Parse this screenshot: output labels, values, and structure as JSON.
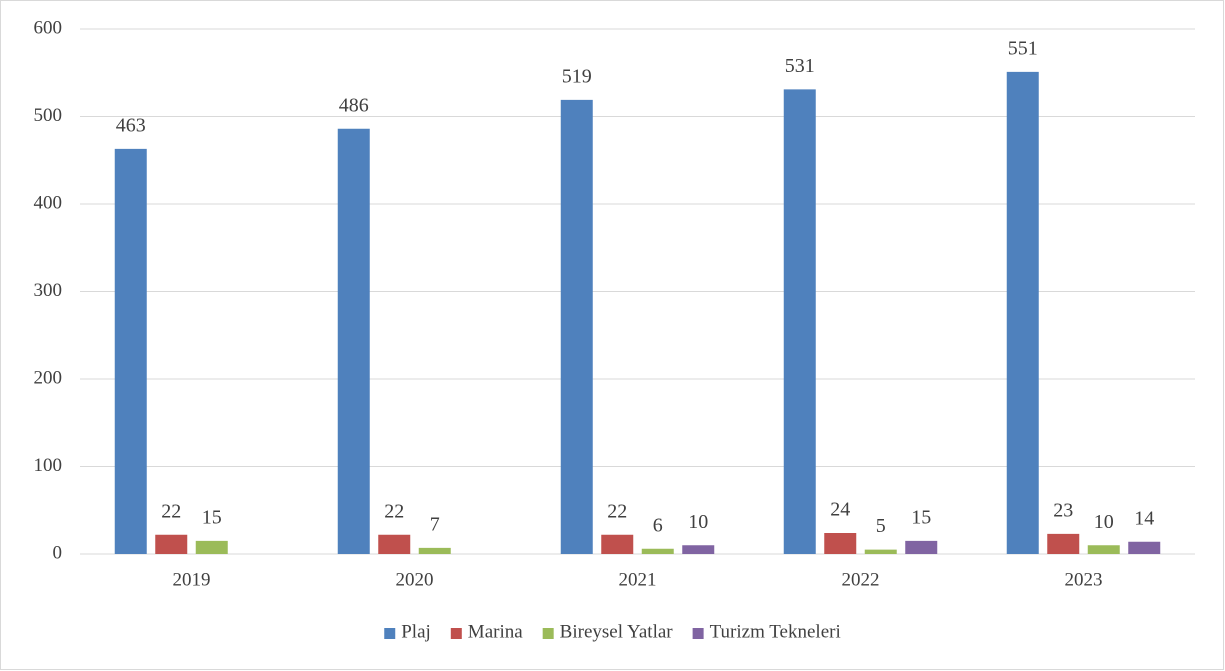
{
  "chart_data": {
    "type": "bar",
    "categories": [
      "2019",
      "2020",
      "2021",
      "2022",
      "2023"
    ],
    "series": [
      {
        "name": "Plaj",
        "color": "#4f81bd",
        "values": [
          463,
          486,
          519,
          531,
          551
        ]
      },
      {
        "name": "Marina",
        "color": "#c0504d",
        "values": [
          22,
          22,
          22,
          24,
          23
        ]
      },
      {
        "name": "Bireysel Yatlar",
        "color": "#9bbb59",
        "values": [
          15,
          7,
          6,
          5,
          10
        ]
      },
      {
        "name": "Turizm Tekneleri",
        "color": "#8064a2",
        "values": [
          null,
          null,
          10,
          15,
          14
        ]
      }
    ],
    "ylim": [
      0,
      600
    ],
    "yticks": [
      0,
      100,
      200,
      300,
      400,
      500,
      600
    ],
    "grid": true,
    "legend": "bottom"
  }
}
